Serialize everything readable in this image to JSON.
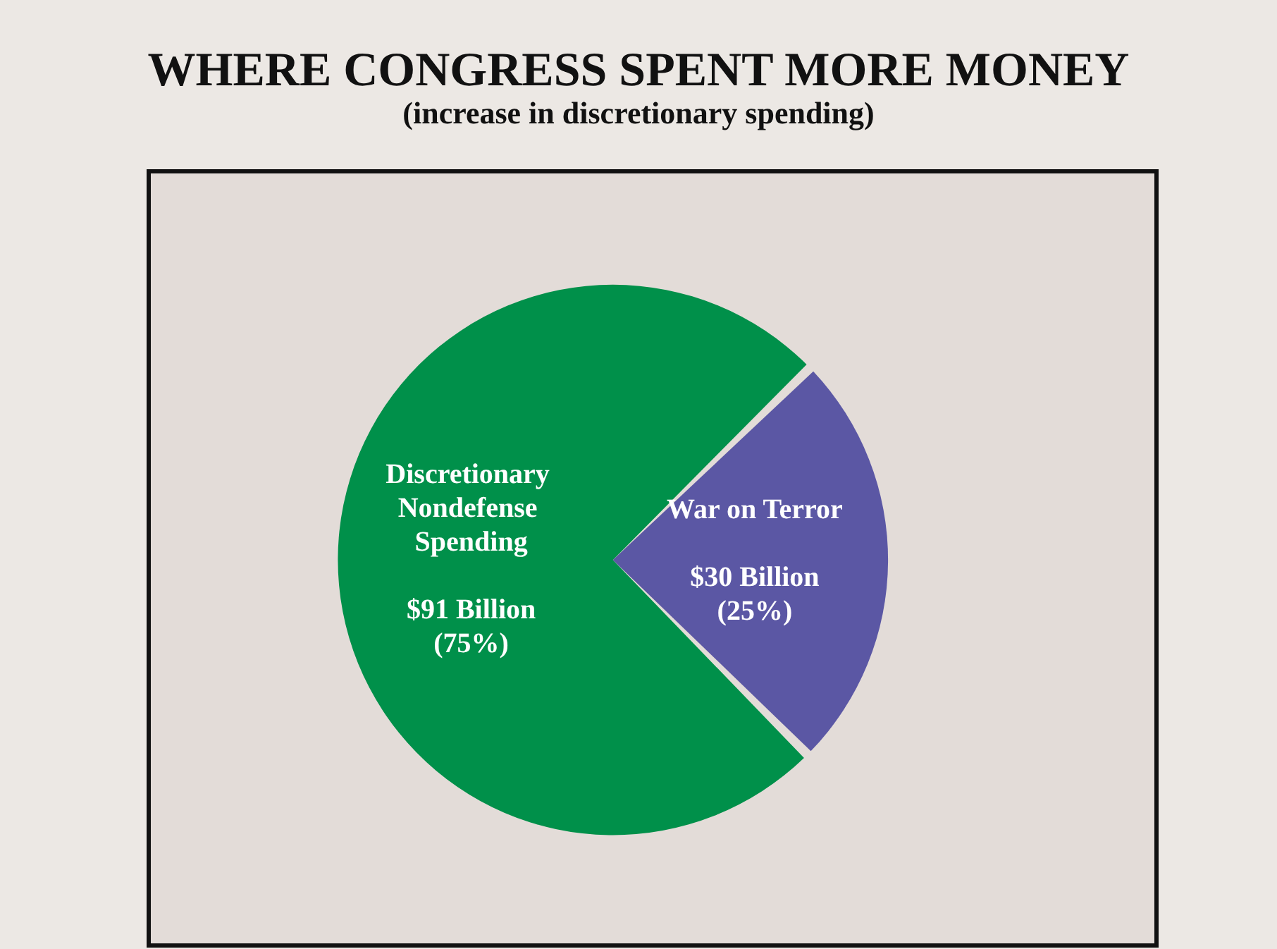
{
  "chart_data": {
    "type": "pie",
    "title": "WHERE CONGRESS SPENT MORE MONEY",
    "subtitle": "(increase in discretionary spending)",
    "categories": [
      "Discretionary Nondefense Spending",
      "War on Terror"
    ],
    "values": [
      91,
      30
    ],
    "colors": [
      "#00904a",
      "#5b57a4"
    ],
    "value_labels": [
      "$91 Billion\n(75%)",
      "$30 Billion\n(25%)"
    ],
    "legend": false
  }
}
